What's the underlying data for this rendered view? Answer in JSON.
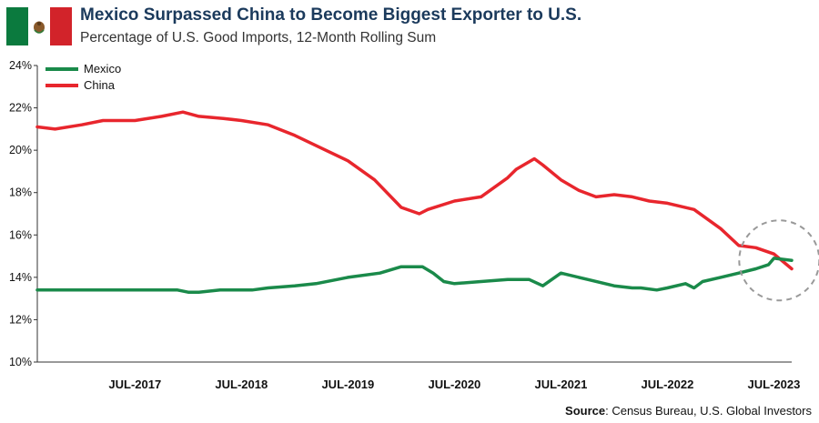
{
  "header": {
    "title": "Mexico Surpassed China to Become Biggest Exporter to U.S.",
    "subtitle": "Percentage of U.S. Good Imports, 12-Month Rolling Sum"
  },
  "source": {
    "label": "Source",
    "text": ": Census Bureau, U.S. Global Investors"
  },
  "colors": {
    "mexico": "#1a8a4a",
    "china": "#e8262d",
    "flag_green": "#0b7a3e",
    "flag_white": "#ffffff",
    "flag_red": "#d2232a",
    "annotation_circle": "#999999"
  },
  "chart_data": {
    "type": "line",
    "title": "Mexico Surpassed China to Become Biggest Exporter to U.S.",
    "subtitle": "Percentage of U.S. Good Imports, 12-Month Rolling Sum",
    "xlabel": "",
    "ylabel": "",
    "ylim": [
      10,
      24
    ],
    "yticks": [
      10,
      12,
      14,
      16,
      18,
      20,
      22,
      24
    ],
    "ytick_labels": [
      "10%",
      "12%",
      "14%",
      "16%",
      "18%",
      "20%",
      "22%",
      "24%"
    ],
    "xlim": [
      2016.583,
      2023.667
    ],
    "xticks": [
      2017.5,
      2018.5,
      2019.5,
      2020.5,
      2021.5,
      2022.5,
      2023.5
    ],
    "xtick_labels": [
      "JUL-2017",
      "JUL-2018",
      "JUL-2019",
      "JUL-2020",
      "JUL-2021",
      "JUL-2022",
      "JUL-2023"
    ],
    "legend_position": "top-left",
    "series": [
      {
        "name": "Mexico",
        "color": "#1a8a4a",
        "x": [
          2016.583,
          2017.0,
          2017.5,
          2017.9,
          2018.0,
          2018.1,
          2018.3,
          2018.6,
          2018.75,
          2019.0,
          2019.2,
          2019.5,
          2019.8,
          2020.0,
          2020.2,
          2020.3,
          2020.4,
          2020.5,
          2020.75,
          2021.0,
          2021.2,
          2021.33,
          2021.5,
          2021.75,
          2022.0,
          2022.17,
          2022.25,
          2022.4,
          2022.5,
          2022.67,
          2022.75,
          2022.83,
          2023.0,
          2023.17,
          2023.33,
          2023.45,
          2023.5,
          2023.667
        ],
        "values": [
          13.4,
          13.4,
          13.4,
          13.4,
          13.3,
          13.3,
          13.4,
          13.4,
          13.5,
          13.6,
          13.7,
          14.0,
          14.2,
          14.5,
          14.5,
          14.2,
          13.8,
          13.7,
          13.8,
          13.9,
          13.9,
          13.6,
          14.2,
          13.9,
          13.6,
          13.5,
          13.5,
          13.4,
          13.5,
          13.7,
          13.5,
          13.8,
          14.0,
          14.2,
          14.4,
          14.6,
          14.9,
          14.8
        ]
      },
      {
        "name": "China",
        "color": "#e8262d",
        "x": [
          2016.583,
          2016.75,
          2017.0,
          2017.2,
          2017.5,
          2017.75,
          2017.95,
          2018.1,
          2018.33,
          2018.5,
          2018.75,
          2019.0,
          2019.25,
          2019.5,
          2019.75,
          2020.0,
          2020.17,
          2020.25,
          2020.5,
          2020.75,
          2021.0,
          2021.08,
          2021.25,
          2021.33,
          2021.5,
          2021.67,
          2021.83,
          2022.0,
          2022.17,
          2022.33,
          2022.5,
          2022.75,
          2023.0,
          2023.17,
          2023.33,
          2023.5,
          2023.667
        ],
        "values": [
          21.1,
          21.0,
          21.2,
          21.4,
          21.4,
          21.6,
          21.8,
          21.6,
          21.5,
          21.4,
          21.2,
          20.7,
          20.1,
          19.5,
          18.6,
          17.3,
          17.0,
          17.2,
          17.6,
          17.8,
          18.7,
          19.1,
          19.6,
          19.3,
          18.6,
          18.1,
          17.8,
          17.9,
          17.8,
          17.6,
          17.5,
          17.2,
          16.3,
          15.5,
          15.4,
          15.1,
          14.4
        ]
      }
    ],
    "annotations": [
      {
        "type": "dashed-circle",
        "x": 2023.55,
        "y": 14.8
      }
    ]
  }
}
